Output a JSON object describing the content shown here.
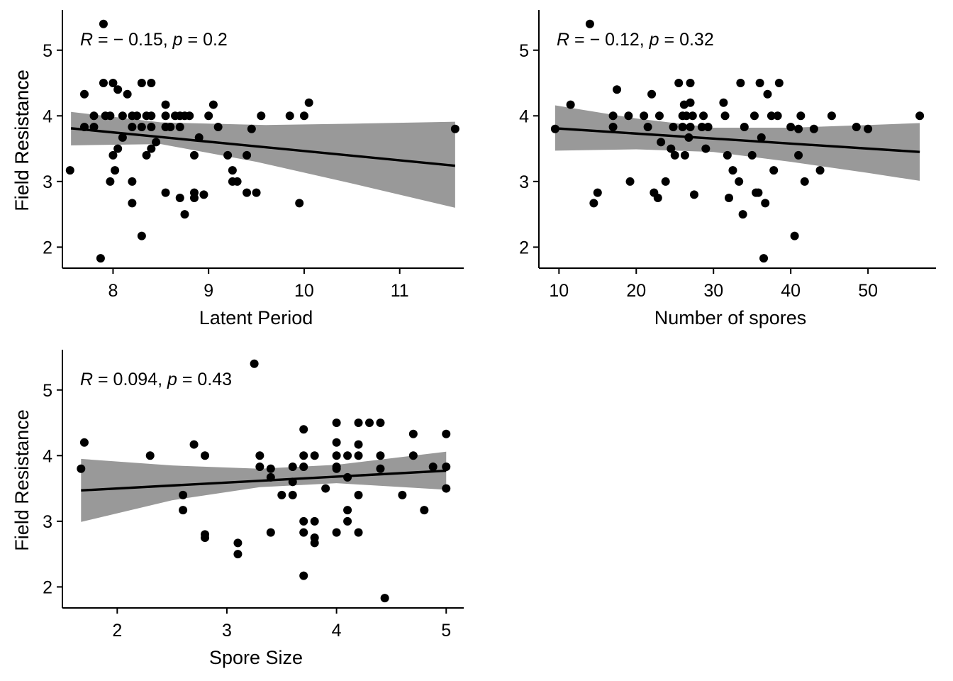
{
  "chart_data": [
    {
      "type": "scatter",
      "title": "",
      "xlabel": "Latent Period",
      "ylabel": "Field Resistance",
      "xlim": [
        7.47,
        11.67
      ],
      "ylim": [
        1.68,
        5.57
      ],
      "xticks": [
        8,
        9,
        10,
        11
      ],
      "yticks": [
        2,
        3,
        4,
        5
      ],
      "annotation": {
        "r_label": "R",
        "r_value": "− 0.15, ",
        "p_label": "p",
        "p_value": " = 0.2",
        "eq": " = "
      },
      "fit": {
        "x0": 7.56,
        "y0": 3.81,
        "x1": 11.58,
        "y1": 3.24
      },
      "band": {
        "upper": [
          [
            7.56,
            4.06
          ],
          [
            8.5,
            3.9
          ],
          [
            9.6,
            3.86
          ],
          [
            10.5,
            3.88
          ],
          [
            11.58,
            3.91
          ]
        ],
        "lower": [
          [
            7.56,
            3.55
          ],
          [
            8.5,
            3.57
          ],
          [
            9.5,
            3.3
          ],
          [
            10.5,
            2.97
          ],
          [
            11.58,
            2.6
          ]
        ]
      },
      "points": [
        [
          7.9,
          5.4
        ],
        [
          7.55,
          3.17
        ],
        [
          7.7,
          4.33
        ],
        [
          7.7,
          3.83
        ],
        [
          7.8,
          4.0
        ],
        [
          7.8,
          3.83
        ],
        [
          7.87,
          1.83
        ],
        [
          7.9,
          4.5
        ],
        [
          7.92,
          4.0
        ],
        [
          7.97,
          4.0
        ],
        [
          7.97,
          3.0
        ],
        [
          8.0,
          4.5
        ],
        [
          8.0,
          3.4
        ],
        [
          8.02,
          3.17
        ],
        [
          8.05,
          4.4
        ],
        [
          8.05,
          3.5
        ],
        [
          8.1,
          4.0
        ],
        [
          8.1,
          3.67
        ],
        [
          8.15,
          4.33
        ],
        [
          8.2,
          4.0
        ],
        [
          8.2,
          3.83
        ],
        [
          8.2,
          3.0
        ],
        [
          8.2,
          2.67
        ],
        [
          8.25,
          4.0
        ],
        [
          8.3,
          4.5
        ],
        [
          8.3,
          3.83
        ],
        [
          8.3,
          2.17
        ],
        [
          8.35,
          4.0
        ],
        [
          8.35,
          3.4
        ],
        [
          8.4,
          4.5
        ],
        [
          8.4,
          4.0
        ],
        [
          8.4,
          3.83
        ],
        [
          8.4,
          3.5
        ],
        [
          8.45,
          3.6
        ],
        [
          8.55,
          4.17
        ],
        [
          8.55,
          4.0
        ],
        [
          8.55,
          3.83
        ],
        [
          8.55,
          2.83
        ],
        [
          8.6,
          3.83
        ],
        [
          8.65,
          4.0
        ],
        [
          8.7,
          4.0
        ],
        [
          8.7,
          3.83
        ],
        [
          8.7,
          2.75
        ],
        [
          8.75,
          4.0
        ],
        [
          8.75,
          2.5
        ],
        [
          8.8,
          4.0
        ],
        [
          8.85,
          3.4
        ],
        [
          8.85,
          2.83
        ],
        [
          8.85,
          2.75
        ],
        [
          8.9,
          3.67
        ],
        [
          8.95,
          2.8
        ],
        [
          9.0,
          4.0
        ],
        [
          9.05,
          4.17
        ],
        [
          9.1,
          3.83
        ],
        [
          9.2,
          3.4
        ],
        [
          9.25,
          3.17
        ],
        [
          9.25,
          3.0
        ],
        [
          9.3,
          3.0
        ],
        [
          9.4,
          3.4
        ],
        [
          9.4,
          2.83
        ],
        [
          9.45,
          3.8
        ],
        [
          9.5,
          2.83
        ],
        [
          9.55,
          4.0
        ],
        [
          9.85,
          4.0
        ],
        [
          9.95,
          2.67
        ],
        [
          10.0,
          4.0
        ],
        [
          10.05,
          4.2
        ],
        [
          11.58,
          3.8
        ]
      ]
    },
    {
      "type": "scatter",
      "title": "",
      "xlabel": "Number of spores",
      "ylabel": "Field Resistance",
      "xlim": [
        7.4,
        58.8
      ],
      "ylim": [
        1.68,
        5.57
      ],
      "xticks": [
        10,
        20,
        30,
        40,
        50
      ],
      "yticks": [
        2,
        3,
        4,
        5
      ],
      "annotation": {
        "r_label": "R",
        "r_value": "− 0.12, ",
        "p_label": "p",
        "p_value": " = 0.32",
        "eq": " = "
      },
      "fit": {
        "x0": 9.5,
        "y0": 3.81,
        "x1": 56.7,
        "y1": 3.45
      },
      "band": {
        "upper": [
          [
            9.5,
            4.16
          ],
          [
            20,
            3.96
          ],
          [
            30,
            3.82
          ],
          [
            40,
            3.82
          ],
          [
            50,
            3.86
          ],
          [
            56.7,
            3.89
          ]
        ],
        "lower": [
          [
            9.5,
            3.47
          ],
          [
            20,
            3.49
          ],
          [
            30,
            3.45
          ],
          [
            40,
            3.3
          ],
          [
            50,
            3.13
          ],
          [
            56.7,
            3.01
          ]
        ]
      },
      "points": [
        [
          9.5,
          3.8
        ],
        [
          11.5,
          4.17
        ],
        [
          14.0,
          5.4
        ],
        [
          14.5,
          2.67
        ],
        [
          15.0,
          2.83
        ],
        [
          17.0,
          4.0
        ],
        [
          17.0,
          3.83
        ],
        [
          17.5,
          4.4
        ],
        [
          19.0,
          4.0
        ],
        [
          19.2,
          3.0
        ],
        [
          21.0,
          4.0
        ],
        [
          21.5,
          3.83
        ],
        [
          22.0,
          4.33
        ],
        [
          22.3,
          2.83
        ],
        [
          22.8,
          2.75
        ],
        [
          23.0,
          4.0
        ],
        [
          23.2,
          3.6
        ],
        [
          23.8,
          3.0
        ],
        [
          24.5,
          3.5
        ],
        [
          24.8,
          3.83
        ],
        [
          25.0,
          3.4
        ],
        [
          25.5,
          4.5
        ],
        [
          26.0,
          4.0
        ],
        [
          26.0,
          3.83
        ],
        [
          26.2,
          4.17
        ],
        [
          26.3,
          3.4
        ],
        [
          26.5,
          4.0
        ],
        [
          26.8,
          3.67
        ],
        [
          27.0,
          4.5
        ],
        [
          27.0,
          4.2
        ],
        [
          27.0,
          3.83
        ],
        [
          27.3,
          4.0
        ],
        [
          27.5,
          2.8
        ],
        [
          28.5,
          3.83
        ],
        [
          28.7,
          4.0
        ],
        [
          29.0,
          3.5
        ],
        [
          29.3,
          3.83
        ],
        [
          31.3,
          4.2
        ],
        [
          31.5,
          4.0
        ],
        [
          31.8,
          3.4
        ],
        [
          32.0,
          2.75
        ],
        [
          32.5,
          3.17
        ],
        [
          33.3,
          3.0
        ],
        [
          33.5,
          4.5
        ],
        [
          33.8,
          2.5
        ],
        [
          34.0,
          3.83
        ],
        [
          35.0,
          3.4
        ],
        [
          35.3,
          4.0
        ],
        [
          35.5,
          2.83
        ],
        [
          35.8,
          2.83
        ],
        [
          36.0,
          4.5
        ],
        [
          36.2,
          3.67
        ],
        [
          36.5,
          1.83
        ],
        [
          36.7,
          2.67
        ],
        [
          37.0,
          4.33
        ],
        [
          37.5,
          4.0
        ],
        [
          37.8,
          3.17
        ],
        [
          38.3,
          4.0
        ],
        [
          38.5,
          4.5
        ],
        [
          40.0,
          3.83
        ],
        [
          40.5,
          2.17
        ],
        [
          41.0,
          3.8
        ],
        [
          41.0,
          3.4
        ],
        [
          41.3,
          4.0
        ],
        [
          41.8,
          3.0
        ],
        [
          43.0,
          3.8
        ],
        [
          43.8,
          3.17
        ],
        [
          45.3,
          4.0
        ],
        [
          48.5,
          3.83
        ],
        [
          50.0,
          3.8
        ],
        [
          56.7,
          4.0
        ]
      ]
    },
    {
      "type": "scatter",
      "title": "",
      "xlabel": "Spore Size",
      "ylabel": "Field Resistance",
      "xlim": [
        1.5,
        5.16
      ],
      "ylim": [
        1.68,
        5.57
      ],
      "xticks": [
        2,
        3,
        4,
        5
      ],
      "yticks": [
        2,
        3,
        4,
        5
      ],
      "annotation": {
        "r_label": "R",
        "r_value": " = 0.094, ",
        "p_label": "p",
        "p_value": " = 0.43",
        "eq": ""
      },
      "fit": {
        "x0": 1.67,
        "y0": 3.47,
        "x1": 5.0,
        "y1": 3.77
      },
      "band": {
        "upper": [
          [
            1.67,
            3.95
          ],
          [
            2.5,
            3.85
          ],
          [
            3.3,
            3.8
          ],
          [
            4.0,
            3.86
          ],
          [
            5.0,
            4.06
          ]
        ],
        "lower": [
          [
            1.67,
            2.99
          ],
          [
            2.5,
            3.32
          ],
          [
            3.3,
            3.52
          ],
          [
            4.0,
            3.58
          ],
          [
            5.0,
            3.48
          ]
        ]
      },
      "points": [
        [
          1.67,
          3.8
        ],
        [
          1.7,
          4.2
        ],
        [
          2.3,
          4.0
        ],
        [
          2.6,
          3.4
        ],
        [
          2.6,
          3.17
        ],
        [
          2.7,
          4.17
        ],
        [
          2.8,
          4.0
        ],
        [
          2.8,
          2.8
        ],
        [
          2.8,
          2.75
        ],
        [
          3.1,
          2.67
        ],
        [
          3.1,
          2.5
        ],
        [
          3.25,
          5.4
        ],
        [
          3.3,
          4.0
        ],
        [
          3.3,
          3.83
        ],
        [
          3.4,
          3.8
        ],
        [
          3.4,
          3.67
        ],
        [
          3.4,
          2.83
        ],
        [
          3.5,
          3.4
        ],
        [
          3.6,
          3.83
        ],
        [
          3.6,
          3.6
        ],
        [
          3.6,
          3.4
        ],
        [
          3.7,
          4.4
        ],
        [
          3.7,
          4.0
        ],
        [
          3.7,
          3.83
        ],
        [
          3.7,
          3.0
        ],
        [
          3.7,
          2.83
        ],
        [
          3.7,
          2.17
        ],
        [
          3.8,
          4.0
        ],
        [
          3.8,
          3.0
        ],
        [
          3.8,
          2.75
        ],
        [
          3.8,
          2.67
        ],
        [
          3.9,
          3.5
        ],
        [
          4.0,
          4.5
        ],
        [
          4.0,
          4.2
        ],
        [
          4.0,
          4.0
        ],
        [
          4.0,
          3.83
        ],
        [
          4.0,
          3.8
        ],
        [
          4.0,
          2.83
        ],
        [
          4.1,
          4.0
        ],
        [
          4.1,
          3.67
        ],
        [
          4.1,
          3.17
        ],
        [
          4.1,
          3.0
        ],
        [
          4.2,
          4.5
        ],
        [
          4.2,
          4.17
        ],
        [
          4.2,
          4.0
        ],
        [
          4.2,
          3.4
        ],
        [
          4.2,
          2.83
        ],
        [
          4.3,
          4.5
        ],
        [
          4.4,
          4.5
        ],
        [
          4.4,
          4.0
        ],
        [
          4.4,
          3.8
        ],
        [
          4.44,
          1.83
        ],
        [
          4.6,
          3.4
        ],
        [
          4.7,
          4.33
        ],
        [
          4.7,
          4.0
        ],
        [
          4.8,
          3.17
        ],
        [
          4.88,
          3.83
        ],
        [
          5.0,
          4.33
        ],
        [
          5.0,
          3.83
        ],
        [
          5.0,
          3.5
        ]
      ]
    }
  ]
}
